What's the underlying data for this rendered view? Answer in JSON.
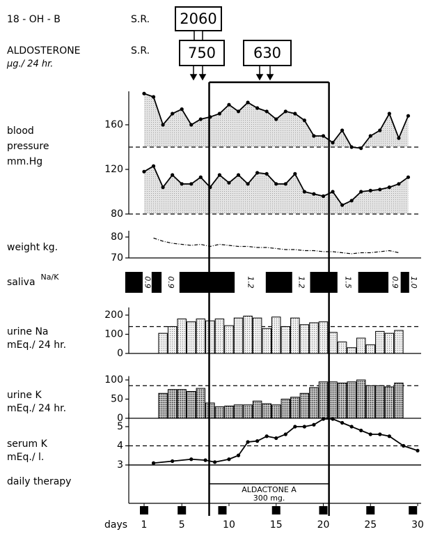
{
  "header": {
    "row1": {
      "label": "18 - OH - B",
      "method": "S.R.",
      "value": 2060
    },
    "row2": {
      "label": "ALDOSTERONE",
      "method": "S.R.",
      "unit": "µg./ 24 hr.",
      "values": [
        750,
        630
      ]
    }
  },
  "x_axis": {
    "label": "days",
    "xlim": [
      1,
      30
    ],
    "xticks": [
      1,
      5,
      10,
      15,
      20,
      25,
      30
    ]
  },
  "chart_data": [
    {
      "type": "line",
      "label": [
        "blood",
        "pressure",
        "mm.Hg"
      ],
      "ylim": [
        80,
        190
      ],
      "yticks": [
        80,
        120,
        160
      ],
      "x": [
        1,
        2,
        3,
        4,
        5,
        6,
        7,
        8,
        9,
        10,
        11,
        12,
        13,
        14,
        15,
        16,
        17,
        18,
        19,
        20,
        21,
        22,
        23,
        24,
        25,
        26,
        27,
        28,
        29
      ],
      "series": [
        {
          "color": "#000",
          "fill": "#d4d4d4",
          "reference": 140,
          "values": [
            188,
            185,
            160,
            170,
            174,
            160,
            165,
            167,
            170,
            178,
            172,
            180,
            175,
            172,
            165,
            172,
            170,
            164,
            150,
            150,
            144,
            155,
            140,
            139,
            150,
            155,
            170,
            148,
            168
          ]
        },
        {
          "color": "#000",
          "fill": "#d4d4d4",
          "reference": 80,
          "values": [
            118,
            123,
            104,
            115,
            107,
            107,
            113,
            104,
            115,
            108,
            115,
            107,
            117,
            116,
            107,
            107,
            116,
            100,
            98,
            96,
            100,
            88,
            92,
            100,
            101,
            102,
            104,
            107,
            113
          ]
        }
      ]
    },
    {
      "type": "line",
      "label": [
        "weight kg."
      ],
      "ylim": [
        70,
        83
      ],
      "yticks": [
        70,
        80
      ],
      "base_line": true,
      "style": "dash-dot",
      "markers": false,
      "x": [
        2,
        3,
        4,
        5,
        6,
        7,
        8,
        9,
        10,
        11,
        12,
        13,
        14,
        15,
        16,
        17,
        18,
        19,
        20,
        21,
        22,
        23,
        24,
        25,
        26,
        27,
        28
      ],
      "series": [
        {
          "color": "#000",
          "values": [
            79.5,
            78,
            77,
            76.5,
            76,
            76.5,
            75.5,
            76.5,
            76,
            75.5,
            75.5,
            75,
            75,
            74.5,
            74,
            74,
            73.5,
            73.5,
            73,
            73,
            72.5,
            72,
            72.5,
            72.5,
            73,
            73.5,
            72.5
          ]
        }
      ]
    },
    {
      "type": "blocks",
      "label": [
        "saliva"
      ],
      "superscript": "Na/K",
      "color": "#000",
      "blocks": [
        {
          "start": -1,
          "end": 0.85
        },
        {
          "start": 1.8,
          "end": 2.85
        },
        {
          "start": 4.75,
          "end": 10.6
        },
        {
          "start": 13.9,
          "end": 16.7
        },
        {
          "start": 18.6,
          "end": 21.5
        },
        {
          "start": 23.7,
          "end": 26.9
        },
        {
          "start": 28.2,
          "end": 29.1
        }
      ],
      "ratios": [
        0.9,
        0.9,
        1.2,
        1.2,
        1.5,
        0.9,
        {
          "value": 1,
          "label": "1.0"
        }
      ]
    },
    {
      "type": "bar",
      "label": [
        "urine  Na",
        "mEq./ 24 hr."
      ],
      "ylim": [
        0,
        240
      ],
      "yticks": [
        0,
        100,
        200
      ],
      "reference": 140,
      "base_line": true,
      "pattern": "light",
      "x": [
        3,
        4,
        5,
        6,
        7,
        8,
        9,
        10,
        11,
        12,
        13,
        14,
        15,
        16,
        17,
        18,
        19,
        20,
        21,
        22,
        23,
        24,
        25,
        26,
        27,
        28
      ],
      "values": [
        105,
        140,
        180,
        165,
        180,
        170,
        180,
        145,
        185,
        195,
        185,
        130,
        190,
        140,
        185,
        150,
        160,
        165,
        110,
        60,
        30,
        80,
        45,
        115,
        105,
        120
      ]
    },
    {
      "type": "bar",
      "label": [
        "urine  K",
        "mEq./ 24 hr."
      ],
      "ylim": [
        0,
        110
      ],
      "yticks": [
        0,
        50,
        100
      ],
      "reference": 85,
      "base_line": true,
      "pattern": "dark",
      "x": [
        3,
        4,
        5,
        6,
        7,
        8,
        9,
        10,
        11,
        12,
        13,
        14,
        15,
        16,
        17,
        18,
        19,
        20,
        21,
        22,
        23,
        24,
        25,
        26,
        27,
        28
      ],
      "values": [
        65,
        75,
        75,
        70,
        78,
        40,
        30,
        32,
        35,
        35,
        45,
        38,
        35,
        50,
        55,
        65,
        80,
        95,
        95,
        92,
        95,
        100,
        85,
        85,
        82,
        92
      ]
    },
    {
      "type": "line",
      "label": [
        "serum K",
        "mEq./ l."
      ],
      "ylim": [
        3,
        5.7
      ],
      "yticks": [
        3,
        4,
        5
      ],
      "reference": 4,
      "base_line": true,
      "x": [
        2,
        4,
        6,
        7.5,
        8.5,
        10,
        11,
        12,
        13,
        14,
        15,
        16,
        17,
        18,
        19,
        20,
        21,
        22,
        23,
        24,
        25,
        26,
        27,
        28.5,
        30
      ],
      "series": [
        {
          "color": "#000",
          "values": [
            3.1,
            3.2,
            3.3,
            3.25,
            3.15,
            3.3,
            3.5,
            4.2,
            4.25,
            4.5,
            4.4,
            4.6,
            5.0,
            5.0,
            5.1,
            5.4,
            5.4,
            5.2,
            5.0,
            4.8,
            4.6,
            4.6,
            4.5,
            4.0,
            3.75
          ]
        }
      ]
    },
    {
      "type": "therapy",
      "label": [
        "daily therapy"
      ],
      "drug": "ALDACTONE A",
      "dose": "300 mg.",
      "start": 7.9,
      "end": 20.6,
      "markers": [
        1,
        5,
        9.3,
        15,
        20,
        25,
        29.5
      ]
    }
  ]
}
